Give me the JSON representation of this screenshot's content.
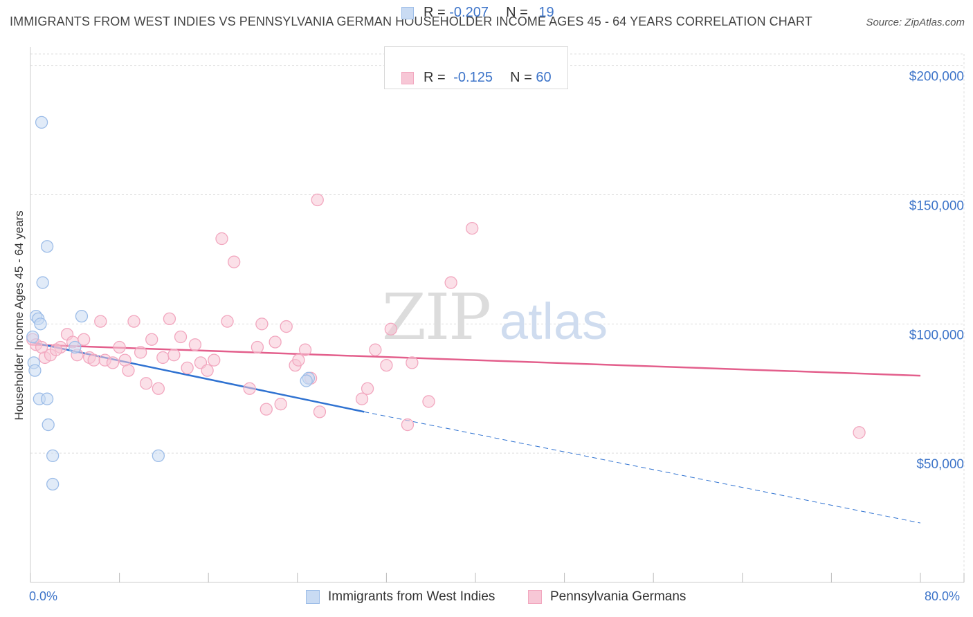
{
  "chart_data": {
    "type": "scatter",
    "title": "IMMIGRANTS FROM WEST INDIES VS PENNSYLVANIA GERMAN HOUSEHOLDER INCOME AGES 45 - 64 YEARS CORRELATION CHART",
    "source": "Source: ZipAtlas.com",
    "xlabel": "",
    "ylabel": "Householder Income Ages 45 - 64 years",
    "xlim": [
      0,
      80
    ],
    "ylim": [
      0,
      205000
    ],
    "x_tick_labels": [
      "0.0%",
      "80.0%"
    ],
    "y_ticks": [
      {
        "value": 50000,
        "label": "$50,000"
      },
      {
        "value": 100000,
        "label": "$100,000"
      },
      {
        "value": 150000,
        "label": "$150,000"
      },
      {
        "value": 200000,
        "label": "$200,000"
      }
    ],
    "watermark": {
      "zip": "ZIP",
      "atlas": "atlas"
    },
    "legend_stats": [
      {
        "r_label": "R = ",
        "r_value": "-0.207",
        "n_label": "N = ",
        "n_value": "19"
      },
      {
        "r_label": "R = ",
        "r_value": "-0.125",
        "n_label": "N = ",
        "n_value": "60"
      }
    ],
    "series": [
      {
        "name": "Immigrants from West Indies",
        "color": "#9dbde8",
        "fill": "#c9dbf3",
        "line_color": "#2f72d1",
        "trend": {
          "x0": 0,
          "y0": 93000,
          "x1": 30,
          "y1": 66000,
          "x_dash_end": 80,
          "y_dash_end": 23000
        },
        "points": [
          {
            "x": 1.0,
            "y": 178000
          },
          {
            "x": 1.5,
            "y": 130000
          },
          {
            "x": 1.1,
            "y": 116000
          },
          {
            "x": 0.5,
            "y": 103000
          },
          {
            "x": 0.7,
            "y": 102000
          },
          {
            "x": 0.9,
            "y": 100000
          },
          {
            "x": 0.2,
            "y": 95000
          },
          {
            "x": 4.6,
            "y": 103000
          },
          {
            "x": 4.0,
            "y": 91000
          },
          {
            "x": 0.3,
            "y": 85000
          },
          {
            "x": 0.4,
            "y": 82000
          },
          {
            "x": 0.8,
            "y": 71000
          },
          {
            "x": 1.5,
            "y": 71000
          },
          {
            "x": 1.6,
            "y": 61000
          },
          {
            "x": 2.0,
            "y": 49000
          },
          {
            "x": 2.0,
            "y": 38000
          },
          {
            "x": 11.5,
            "y": 49000
          },
          {
            "x": 25.0,
            "y": 79000
          },
          {
            "x": 24.8,
            "y": 78000
          }
        ]
      },
      {
        "name": "Pennsylvania Germans",
        "color": "#f2a7bf",
        "fill": "#f7c7d6",
        "line_color": "#e35f8c",
        "trend": {
          "x0": 0,
          "y0": 92000,
          "x1": 80,
          "y1": 80000
        },
        "points": [
          {
            "x": 0.2,
            "y": 94000
          },
          {
            "x": 0.5,
            "y": 92000
          },
          {
            "x": 1.3,
            "y": 87000
          },
          {
            "x": 1.8,
            "y": 88000
          },
          {
            "x": 2.7,
            "y": 91000
          },
          {
            "x": 3.3,
            "y": 96000
          },
          {
            "x": 3.8,
            "y": 93000
          },
          {
            "x": 4.2,
            "y": 88000
          },
          {
            "x": 4.8,
            "y": 94000
          },
          {
            "x": 5.3,
            "y": 87000
          },
          {
            "x": 5.7,
            "y": 86000
          },
          {
            "x": 6.3,
            "y": 101000
          },
          {
            "x": 6.7,
            "y": 86000
          },
          {
            "x": 7.4,
            "y": 85000
          },
          {
            "x": 8.0,
            "y": 91000
          },
          {
            "x": 8.5,
            "y": 86000
          },
          {
            "x": 8.8,
            "y": 82000
          },
          {
            "x": 9.3,
            "y": 101000
          },
          {
            "x": 9.9,
            "y": 89000
          },
          {
            "x": 10.4,
            "y": 77000
          },
          {
            "x": 10.9,
            "y": 94000
          },
          {
            "x": 11.5,
            "y": 75000
          },
          {
            "x": 11.9,
            "y": 87000
          },
          {
            "x": 12.5,
            "y": 102000
          },
          {
            "x": 12.9,
            "y": 88000
          },
          {
            "x": 13.5,
            "y": 95000
          },
          {
            "x": 14.1,
            "y": 83000
          },
          {
            "x": 14.8,
            "y": 92000
          },
          {
            "x": 15.3,
            "y": 85000
          },
          {
            "x": 15.9,
            "y": 82000
          },
          {
            "x": 16.5,
            "y": 86000
          },
          {
            "x": 17.2,
            "y": 133000
          },
          {
            "x": 17.7,
            "y": 101000
          },
          {
            "x": 18.3,
            "y": 124000
          },
          {
            "x": 19.7,
            "y": 75000
          },
          {
            "x": 20.4,
            "y": 91000
          },
          {
            "x": 20.8,
            "y": 100000
          },
          {
            "x": 21.2,
            "y": 67000
          },
          {
            "x": 22.0,
            "y": 93000
          },
          {
            "x": 22.5,
            "y": 69000
          },
          {
            "x": 23.0,
            "y": 99000
          },
          {
            "x": 23.8,
            "y": 84000
          },
          {
            "x": 24.1,
            "y": 86000
          },
          {
            "x": 24.7,
            "y": 90000
          },
          {
            "x": 25.2,
            "y": 79000
          },
          {
            "x": 25.8,
            "y": 148000
          },
          {
            "x": 26.0,
            "y": 66000
          },
          {
            "x": 29.8,
            "y": 71000
          },
          {
            "x": 30.3,
            "y": 75000
          },
          {
            "x": 31.0,
            "y": 90000
          },
          {
            "x": 32.0,
            "y": 84000
          },
          {
            "x": 32.4,
            "y": 98000
          },
          {
            "x": 33.9,
            "y": 61000
          },
          {
            "x": 34.3,
            "y": 85000
          },
          {
            "x": 35.8,
            "y": 70000
          },
          {
            "x": 37.8,
            "y": 116000
          },
          {
            "x": 39.7,
            "y": 137000
          },
          {
            "x": 74.5,
            "y": 58000
          },
          {
            "x": 1.0,
            "y": 91000
          },
          {
            "x": 2.3,
            "y": 90000
          }
        ]
      }
    ]
  }
}
